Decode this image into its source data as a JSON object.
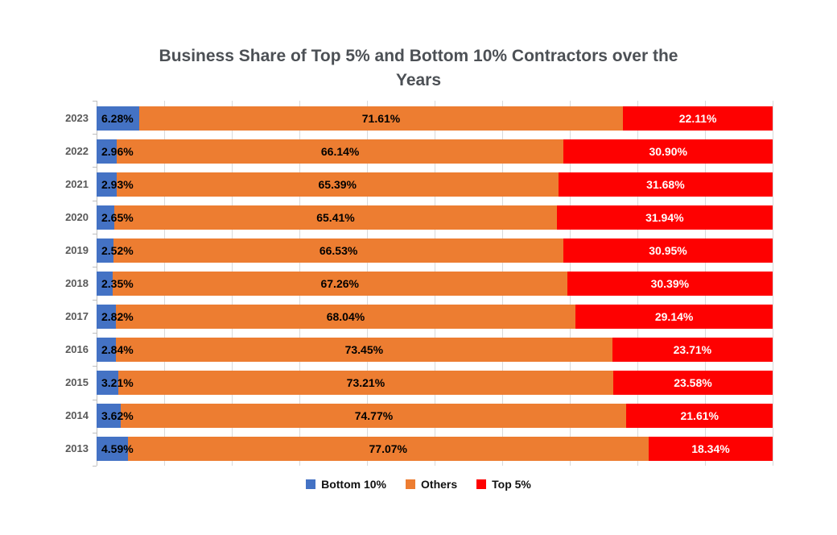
{
  "header": {
    "title_line1": "Business Share of Top 5% and Bottom 10% Contractors over the",
    "title_line2": "Years"
  },
  "chart_data": {
    "type": "bar",
    "orientation": "horizontal",
    "stacked": true,
    "title": "Business Share of Top 5% and Bottom 10% Contractors over the Years",
    "categories": [
      "2023",
      "2022",
      "2021",
      "2020",
      "2019",
      "2018",
      "2017",
      "2016",
      "2015",
      "2014",
      "2013"
    ],
    "series": [
      {
        "name": "Bottom 10%",
        "color": "#4472C4",
        "label_color": "#000000",
        "label_align": "left",
        "values": [
          6.28,
          2.96,
          2.93,
          2.65,
          2.52,
          2.35,
          2.82,
          2.84,
          3.21,
          3.62,
          4.59
        ]
      },
      {
        "name": "Others",
        "color": "#ED7D31",
        "label_color": "#000000",
        "label_align": "center",
        "values": [
          71.61,
          66.14,
          65.39,
          65.41,
          66.53,
          67.26,
          68.04,
          73.45,
          73.21,
          74.77,
          77.07
        ]
      },
      {
        "name": "Top 5%",
        "color": "#FE0101",
        "label_color": "#FFFFFF",
        "label_align": "center",
        "values": [
          22.11,
          30.9,
          31.68,
          31.94,
          30.95,
          30.39,
          29.14,
          23.71,
          23.58,
          21.61,
          18.34
        ]
      }
    ],
    "xlim": [
      0,
      100
    ],
    "grid": true,
    "gridline_interval": 10,
    "legend_position": "bottom",
    "value_label_format": "0.00%"
  },
  "colors": {
    "gridline": "#D9D9D9",
    "axis_line": "#BFBFBF",
    "year_label": "#595959",
    "title": "#4C5055"
  }
}
